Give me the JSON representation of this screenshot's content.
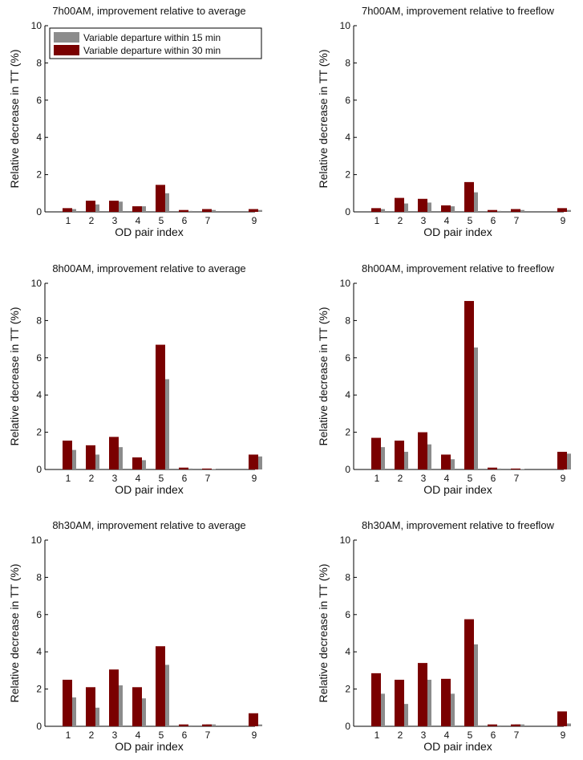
{
  "colors": {
    "series_15": "#8c8c8c",
    "series_30": "#7a0000",
    "axis": "#000000",
    "background": "#ffffff"
  },
  "legend_labels": [
    "Variable departure within 15 min",
    "Variable departure within 30 min"
  ],
  "chart_data": [
    {
      "type": "bar",
      "title": "7h00AM, improvement relative to average",
      "xlabel": "OD pair index",
      "ylabel": "Relative decrease in TT (%)",
      "ylim": [
        0,
        10
      ],
      "yticks": [
        "0",
        "2",
        "4",
        "6",
        "8",
        "10"
      ],
      "categories": [
        "1",
        "2",
        "3",
        "4",
        "5",
        "6",
        "7",
        "9"
      ],
      "legend": "top-left",
      "series": [
        {
          "name": "Variable departure within 15 min",
          "values": [
            0.15,
            0.4,
            0.55,
            0.3,
            1.0,
            0.05,
            0.1,
            0.1
          ]
        },
        {
          "name": "Variable departure within 30 min",
          "values": [
            0.2,
            0.6,
            0.6,
            0.3,
            1.45,
            0.1,
            0.15,
            0.15
          ]
        }
      ]
    },
    {
      "type": "bar",
      "title": "7h00AM, improvement relative to freeflow",
      "xlabel": "OD pair index",
      "ylabel": "Relative decrease in TT (%)",
      "ylim": [
        0,
        10
      ],
      "yticks": [
        "0",
        "2",
        "4",
        "6",
        "8",
        "10"
      ],
      "categories": [
        "1",
        "2",
        "3",
        "4",
        "5",
        "6",
        "7",
        "9"
      ],
      "series": [
        {
          "name": "Variable departure within 15 min",
          "values": [
            0.15,
            0.45,
            0.5,
            0.3,
            1.05,
            0.05,
            0.1,
            0.1
          ]
        },
        {
          "name": "Variable departure within 30 min",
          "values": [
            0.2,
            0.75,
            0.7,
            0.35,
            1.6,
            0.1,
            0.15,
            0.2
          ]
        }
      ]
    },
    {
      "type": "bar",
      "title": "8h00AM, improvement relative to average",
      "xlabel": "OD pair index",
      "ylabel": "Relative decrease in TT (%)",
      "ylim": [
        0,
        10
      ],
      "yticks": [
        "0",
        "2",
        "4",
        "6",
        "8",
        "10"
      ],
      "categories": [
        "1",
        "2",
        "3",
        "4",
        "5",
        "6",
        "7",
        "9"
      ],
      "series": [
        {
          "name": "Variable departure within 15 min",
          "values": [
            1.05,
            0.8,
            1.2,
            0.5,
            4.85,
            0.05,
            0.02,
            0.7
          ]
        },
        {
          "name": "Variable departure within 30 min",
          "values": [
            1.55,
            1.3,
            1.75,
            0.65,
            6.7,
            0.1,
            0.05,
            0.8
          ]
        }
      ]
    },
    {
      "type": "bar",
      "title": "8h00AM, improvement relative to freeflow",
      "xlabel": "OD pair index",
      "ylabel": "Relative decrease in TT (%)",
      "ylim": [
        0,
        10
      ],
      "yticks": [
        "0",
        "2",
        "4",
        "6",
        "8",
        "10"
      ],
      "categories": [
        "1",
        "2",
        "3",
        "4",
        "5",
        "6",
        "7",
        "9"
      ],
      "series": [
        {
          "name": "Variable departure within 15 min",
          "values": [
            1.2,
            0.95,
            1.35,
            0.55,
            6.55,
            0.05,
            0.02,
            0.85
          ]
        },
        {
          "name": "Variable departure within 30 min",
          "values": [
            1.7,
            1.55,
            2.0,
            0.8,
            9.05,
            0.1,
            0.05,
            0.95
          ]
        }
      ]
    },
    {
      "type": "bar",
      "title": "8h30AM, improvement relative to average",
      "xlabel": "OD pair index",
      "ylabel": "Relative decrease in TT (%)",
      "ylim": [
        0,
        10
      ],
      "yticks": [
        "0",
        "2",
        "4",
        "6",
        "8",
        "10"
      ],
      "categories": [
        "1",
        "2",
        "3",
        "4",
        "5",
        "6",
        "7",
        "9"
      ],
      "series": [
        {
          "name": "Variable departure within 15 min",
          "values": [
            1.55,
            1.0,
            2.2,
            1.5,
            3.3,
            0.05,
            0.1,
            0.1
          ]
        },
        {
          "name": "Variable departure within 30 min",
          "values": [
            2.5,
            2.1,
            3.05,
            2.1,
            4.3,
            0.1,
            0.1,
            0.7
          ]
        }
      ]
    },
    {
      "type": "bar",
      "title": "8h30AM, improvement relative to freeflow",
      "xlabel": "OD pair index",
      "ylabel": "Relative decrease in TT (%)",
      "ylim": [
        0,
        10
      ],
      "yticks": [
        "0",
        "2",
        "4",
        "6",
        "8",
        "10"
      ],
      "categories": [
        "1",
        "2",
        "3",
        "4",
        "5",
        "6",
        "7",
        "9"
      ],
      "series": [
        {
          "name": "Variable departure within 15 min",
          "values": [
            1.75,
            1.2,
            2.5,
            1.75,
            4.4,
            0.05,
            0.1,
            0.15
          ]
        },
        {
          "name": "Variable departure within 30 min",
          "values": [
            2.85,
            2.5,
            3.4,
            2.55,
            5.75,
            0.1,
            0.1,
            0.8
          ]
        }
      ]
    }
  ]
}
